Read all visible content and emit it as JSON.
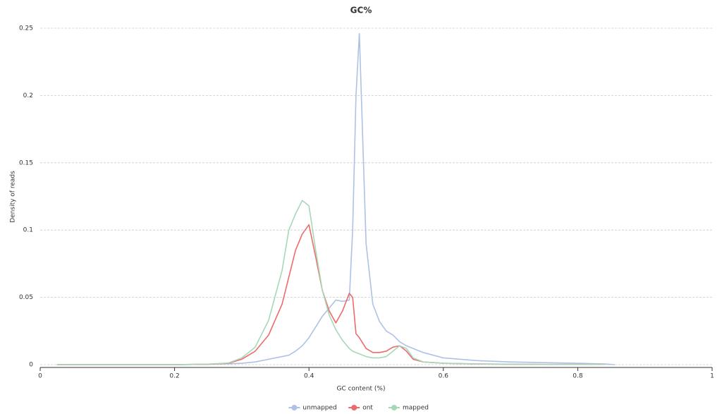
{
  "chart_data": {
    "type": "line",
    "title": "GC%",
    "x_label": "GC content (%)",
    "y_label": "Density of reads",
    "xlim": [
      0,
      1
    ],
    "ylim": [
      0,
      0.25
    ],
    "xticks": [
      0,
      0.2,
      0.4,
      0.6,
      0.8,
      1
    ],
    "yticks": [
      0,
      0.05,
      0.1,
      0.15,
      0.2,
      0.25
    ],
    "grid": true,
    "legend": "bottom",
    "x": [
      0.025,
      0.1,
      0.2,
      0.25,
      0.28,
      0.3,
      0.32,
      0.34,
      0.36,
      0.37,
      0.38,
      0.39,
      0.4,
      0.41,
      0.42,
      0.43,
      0.44,
      0.45,
      0.46,
      0.465,
      0.47,
      0.475,
      0.485,
      0.495,
      0.505,
      0.515,
      0.525,
      0.535,
      0.545,
      0.555,
      0.57,
      0.6,
      0.65,
      0.7,
      0.75,
      0.8,
      0.84,
      0.855
    ],
    "series": [
      {
        "name": "unmapped",
        "color": "#aec2e6",
        "values": [
          0,
          0,
          0,
          0.0003,
          0.0006,
          0.001,
          0.002,
          0.004,
          0.006,
          0.007,
          0.01,
          0.014,
          0.02,
          0.028,
          0.036,
          0.042,
          0.048,
          0.047,
          0.048,
          0.1,
          0.2,
          0.246,
          0.09,
          0.045,
          0.032,
          0.025,
          0.022,
          0.017,
          0.014,
          0.012,
          0.009,
          0.005,
          0.003,
          0.002,
          0.0015,
          0.001,
          0.0005,
          0
        ]
      },
      {
        "name": "ont",
        "color": "#ee6b6b",
        "values": [
          0,
          0,
          0,
          0.0003,
          0.001,
          0.004,
          0.01,
          0.022,
          0.045,
          0.065,
          0.085,
          0.097,
          0.104,
          0.08,
          0.055,
          0.04,
          0.031,
          0.04,
          0.053,
          0.05,
          0.023,
          0.02,
          0.012,
          0.009,
          0.009,
          0.01,
          0.013,
          0.014,
          0.01,
          0.004,
          0.002,
          0.001,
          0.0005,
          0.0003,
          0.0002,
          0.0002,
          0.0002,
          null
        ]
      },
      {
        "name": "mapped",
        "color": "#a6d8b8",
        "values": [
          0,
          0,
          0,
          0.0004,
          0.0012,
          0.005,
          0.013,
          0.033,
          0.07,
          0.1,
          0.112,
          0.122,
          0.118,
          0.085,
          0.055,
          0.037,
          0.026,
          0.018,
          0.012,
          0.01,
          0.009,
          0.008,
          0.006,
          0.005,
          0.005,
          0.006,
          0.01,
          0.014,
          0.012,
          0.005,
          0.002,
          0.001,
          0.0005,
          0.0003,
          0.0002,
          0.0002,
          0.0002,
          null
        ]
      }
    ]
  }
}
